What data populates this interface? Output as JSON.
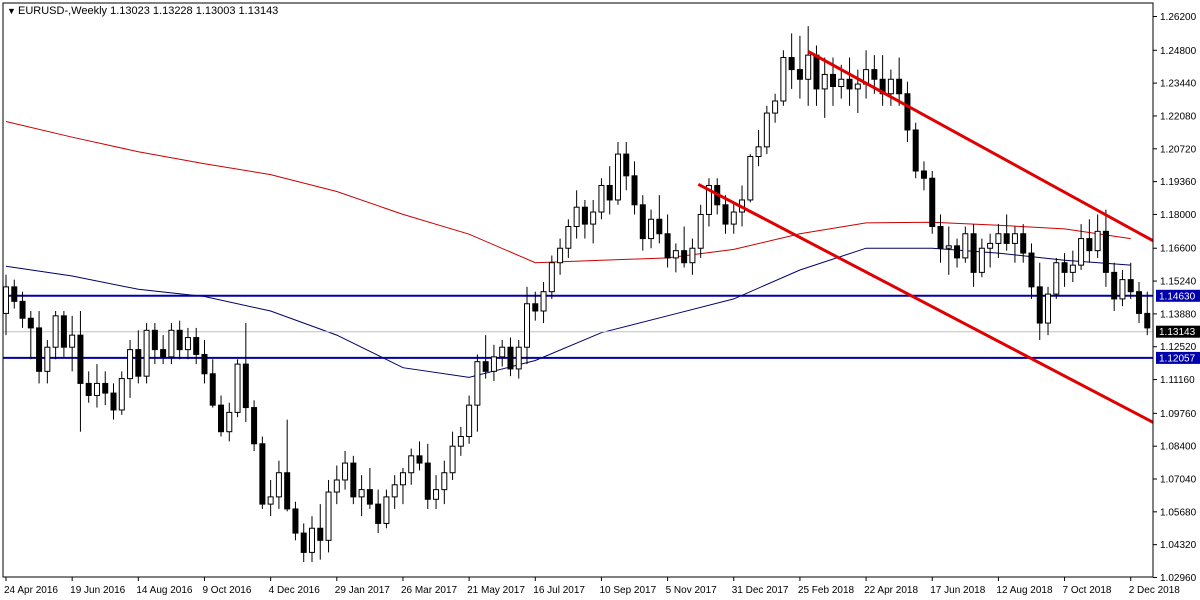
{
  "header": {
    "arrow": "▼",
    "text": "EURUSD-,Weekly  1.13023 1.13228 1.13003 1.13143"
  },
  "chart_data": {
    "type": "candlestick",
    "symbol": "EURUSD-",
    "timeframe": "Weekly",
    "last_bar": {
      "open": 1.13023,
      "high": 1.13228,
      "low": 1.13003,
      "close": 1.13143
    },
    "y_ticks": [
      "1.26200",
      "1.24800",
      "1.23440",
      "1.22080",
      "1.20720",
      "1.19360",
      "1.18000",
      "1.16600",
      "1.15240",
      "1.13880",
      "1.12520",
      "1.11160",
      "1.09760",
      "1.08400",
      "1.07040",
      "1.05680",
      "1.04320",
      "1.02960"
    ],
    "ylim": [
      1.0296,
      1.262
    ],
    "x_tick_labels": [
      "24 Apr 2016",
      "19 Jun 2016",
      "14 Aug 2016",
      "9 Oct 2016",
      "4 Dec 2016",
      "29 Jan 2017",
      "26 Mar 2017",
      "21 May 2017",
      "16 Jul 2017",
      "10 Sep 2017",
      "5 Nov 2017",
      "31 Dec 2017",
      "25 Feb 2018",
      "22 Apr 2018",
      "17 Jun 2018",
      "12 Aug 2018",
      "7 Oct 2018",
      "2 Dec 2018"
    ],
    "horizontal_levels": [
      {
        "label": "1.14630",
        "value": 1.1463,
        "color": "#0000aa"
      },
      {
        "label": "1.12057",
        "value": 1.12057,
        "color": "#0000aa"
      }
    ],
    "current_price": {
      "label": "1.13143",
      "value": 1.13143,
      "color": "#000000"
    },
    "trendlines": [
      {
        "color": "#e00000",
        "points": [
          [
            "4 Mar 2018",
            1.2475
          ],
          [
            "17 Feb 2019",
            1.1535
          ]
        ]
      },
      {
        "color": "#e00000",
        "points": [
          [
            "1 Dec 2017",
            1.1925
          ],
          [
            "17 Feb 2019",
            1.079
          ]
        ]
      }
    ],
    "moving_averages": [
      {
        "color": "#cc0000",
        "points": [
          [
            "24 Apr 2016",
            1.2185
          ],
          [
            "19 Jun 2016",
            1.212
          ],
          [
            "14 Aug 2016",
            1.206
          ],
          [
            "9 Oct 2016",
            1.201
          ],
          [
            "4 Dec 2016",
            1.1965
          ],
          [
            "29 Jan 2017",
            1.1895
          ],
          [
            "26 Mar 2017",
            1.18
          ],
          [
            "21 May 2017",
            1.1718
          ],
          [
            "16 Jul 2017",
            1.16
          ],
          [
            "10 Sep 2017",
            1.161
          ],
          [
            "5 Nov 2017",
            1.162
          ],
          [
            "31 Dec 2017",
            1.1655
          ],
          [
            "25 Feb 2018",
            1.172
          ],
          [
            "22 Apr 2018",
            1.1765
          ],
          [
            "17 Jun 2018",
            1.1768
          ],
          [
            "12 Aug 2018",
            1.1755
          ],
          [
            "7 Oct 2018",
            1.174
          ],
          [
            "2 Dec 2018",
            1.17
          ]
        ]
      },
      {
        "color": "#000066",
        "points": [
          [
            "24 Apr 2016",
            1.1585
          ],
          [
            "19 Jun 2016",
            1.1545
          ],
          [
            "14 Aug 2016",
            1.149
          ],
          [
            "9 Oct 2016",
            1.146
          ],
          [
            "4 Dec 2016",
            1.14
          ],
          [
            "29 Jan 2017",
            1.13
          ],
          [
            "26 Mar 2017",
            1.1165
          ],
          [
            "21 May 2017",
            1.1125
          ],
          [
            "16 Jul 2017",
            1.1195
          ],
          [
            "10 Sep 2017",
            1.131
          ],
          [
            "5 Nov 2017",
            1.138
          ],
          [
            "31 Dec 2017",
            1.145
          ],
          [
            "25 Feb 2018",
            1.157
          ],
          [
            "22 Apr 2018",
            1.166
          ],
          [
            "17 Jun 2018",
            1.166
          ],
          [
            "12 Aug 2018",
            1.164
          ],
          [
            "7 Oct 2018",
            1.161
          ],
          [
            "2 Dec 2018",
            1.159
          ]
        ]
      }
    ],
    "candles": [
      [
        1.139,
        1.155,
        1.13,
        1.15
      ],
      [
        1.15,
        1.153,
        1.141,
        1.144
      ],
      [
        1.144,
        1.148,
        1.133,
        1.137
      ],
      [
        1.137,
        1.14,
        1.12,
        1.133
      ],
      [
        1.133,
        1.14,
        1.11,
        1.115
      ],
      [
        1.115,
        1.128,
        1.11,
        1.125
      ],
      [
        1.125,
        1.14,
        1.12,
        1.138
      ],
      [
        1.138,
        1.14,
        1.121,
        1.125
      ],
      [
        1.125,
        1.138,
        1.115,
        1.13
      ],
      [
        1.13,
        1.14,
        1.09,
        1.11
      ],
      [
        1.11,
        1.115,
        1.102,
        1.105
      ],
      [
        1.105,
        1.118,
        1.1,
        1.11
      ],
      [
        1.11,
        1.115,
        1.101,
        1.106
      ],
      [
        1.106,
        1.11,
        1.095,
        1.099
      ],
      [
        1.099,
        1.115,
        1.097,
        1.112
      ],
      [
        1.112,
        1.128,
        1.104,
        1.124
      ],
      [
        1.124,
        1.132,
        1.11,
        1.113
      ],
      [
        1.113,
        1.135,
        1.11,
        1.132
      ],
      [
        1.132,
        1.135,
        1.118,
        1.124
      ],
      [
        1.124,
        1.13,
        1.118,
        1.121
      ],
      [
        1.121,
        1.135,
        1.118,
        1.132
      ],
      [
        1.132,
        1.136,
        1.12,
        1.124
      ],
      [
        1.124,
        1.133,
        1.12,
        1.129
      ],
      [
        1.129,
        1.133,
        1.118,
        1.122
      ],
      [
        1.122,
        1.128,
        1.11,
        1.114
      ],
      [
        1.114,
        1.12,
        1.1,
        1.101
      ],
      [
        1.101,
        1.105,
        1.088,
        1.09
      ],
      [
        1.09,
        1.102,
        1.086,
        1.098
      ],
      [
        1.098,
        1.12,
        1.096,
        1.118
      ],
      [
        1.118,
        1.135,
        1.094,
        1.1
      ],
      [
        1.1,
        1.103,
        1.082,
        1.085
      ],
      [
        1.085,
        1.088,
        1.058,
        1.06
      ],
      [
        1.06,
        1.07,
        1.055,
        1.063
      ],
      [
        1.063,
        1.078,
        1.058,
        1.073
      ],
      [
        1.073,
        1.095,
        1.057,
        1.058
      ],
      [
        1.058,
        1.061,
        1.045,
        1.048
      ],
      [
        1.048,
        1.052,
        1.036,
        1.04
      ],
      [
        1.04,
        1.055,
        1.036,
        1.05
      ],
      [
        1.05,
        1.06,
        1.037,
        1.045
      ],
      [
        1.045,
        1.07,
        1.04,
        1.065
      ],
      [
        1.065,
        1.076,
        1.06,
        1.07
      ],
      [
        1.07,
        1.082,
        1.066,
        1.077
      ],
      [
        1.077,
        1.08,
        1.06,
        1.063
      ],
      [
        1.063,
        1.072,
        1.055,
        1.066
      ],
      [
        1.066,
        1.075,
        1.058,
        1.06
      ],
      [
        1.06,
        1.066,
        1.048,
        1.052
      ],
      [
        1.052,
        1.066,
        1.05,
        1.063
      ],
      [
        1.063,
        1.072,
        1.058,
        1.068
      ],
      [
        1.068,
        1.075,
        1.06,
        1.073
      ],
      [
        1.073,
        1.083,
        1.068,
        1.08
      ],
      [
        1.08,
        1.086,
        1.074,
        1.077
      ],
      [
        1.077,
        1.085,
        1.058,
        1.062
      ],
      [
        1.062,
        1.072,
        1.058,
        1.066
      ],
      [
        1.066,
        1.078,
        1.06,
        1.073
      ],
      [
        1.073,
        1.09,
        1.07,
        1.084
      ],
      [
        1.084,
        1.092,
        1.08,
        1.088
      ],
      [
        1.088,
        1.105,
        1.085,
        1.101
      ],
      [
        1.101,
        1.122,
        1.09,
        1.119
      ],
      [
        1.119,
        1.13,
        1.112,
        1.115
      ],
      [
        1.115,
        1.126,
        1.111,
        1.121
      ],
      [
        1.121,
        1.128,
        1.117,
        1.125
      ],
      [
        1.125,
        1.129,
        1.113,
        1.116
      ],
      [
        1.116,
        1.128,
        1.112,
        1.125
      ],
      [
        1.125,
        1.15,
        1.118,
        1.143
      ],
      [
        1.143,
        1.148,
        1.136,
        1.14
      ],
      [
        1.14,
        1.152,
        1.135,
        1.148
      ],
      [
        1.148,
        1.163,
        1.145,
        1.16
      ],
      [
        1.16,
        1.17,
        1.155,
        1.166
      ],
      [
        1.166,
        1.178,
        1.162,
        1.175
      ],
      [
        1.175,
        1.19,
        1.17,
        1.183
      ],
      [
        1.183,
        1.186,
        1.17,
        1.176
      ],
      [
        1.176,
        1.186,
        1.168,
        1.181
      ],
      [
        1.181,
        1.195,
        1.178,
        1.192
      ],
      [
        1.192,
        1.2,
        1.18,
        1.186
      ],
      [
        1.186,
        1.21,
        1.184,
        1.205
      ],
      [
        1.205,
        1.21,
        1.19,
        1.196
      ],
      [
        1.196,
        1.202,
        1.18,
        1.184
      ],
      [
        1.184,
        1.188,
        1.165,
        1.17
      ],
      [
        1.17,
        1.182,
        1.166,
        1.178
      ],
      [
        1.178,
        1.188,
        1.168,
        1.172
      ],
      [
        1.172,
        1.18,
        1.158,
        1.162
      ],
      [
        1.162,
        1.168,
        1.156,
        1.165
      ],
      [
        1.165,
        1.175,
        1.158,
        1.16
      ],
      [
        1.16,
        1.17,
        1.155,
        1.166
      ],
      [
        1.166,
        1.184,
        1.162,
        1.18
      ],
      [
        1.18,
        1.195,
        1.175,
        1.192
      ],
      [
        1.192,
        1.195,
        1.18,
        1.184
      ],
      [
        1.184,
        1.188,
        1.172,
        1.176
      ],
      [
        1.176,
        1.185,
        1.172,
        1.181
      ],
      [
        1.181,
        1.192,
        1.175,
        1.186
      ],
      [
        1.186,
        1.205,
        1.185,
        1.204
      ],
      [
        1.204,
        1.215,
        1.2,
        1.208
      ],
      [
        1.208,
        1.225,
        1.205,
        1.222
      ],
      [
        1.222,
        1.23,
        1.218,
        1.227
      ],
      [
        1.227,
        1.248,
        1.225,
        1.245
      ],
      [
        1.245,
        1.255,
        1.232,
        1.24
      ],
      [
        1.24,
        1.254,
        1.228,
        1.236
      ],
      [
        1.236,
        1.258,
        1.225,
        1.246
      ],
      [
        1.246,
        1.25,
        1.225,
        1.232
      ],
      [
        1.232,
        1.245,
        1.22,
        1.238
      ],
      [
        1.238,
        1.245,
        1.225,
        1.233
      ],
      [
        1.233,
        1.242,
        1.228,
        1.236
      ],
      [
        1.236,
        1.245,
        1.225,
        1.232
      ],
      [
        1.232,
        1.24,
        1.222,
        1.234
      ],
      [
        1.234,
        1.248,
        1.228,
        1.24
      ],
      [
        1.24,
        1.246,
        1.23,
        1.236
      ],
      [
        1.236,
        1.246,
        1.225,
        1.23
      ],
      [
        1.23,
        1.24,
        1.225,
        1.236
      ],
      [
        1.236,
        1.245,
        1.225,
        1.23
      ],
      [
        1.23,
        1.235,
        1.21,
        1.215
      ],
      [
        1.215,
        1.218,
        1.195,
        1.198
      ],
      [
        1.198,
        1.202,
        1.19,
        1.195
      ],
      [
        1.195,
        1.198,
        1.172,
        1.175
      ],
      [
        1.175,
        1.18,
        1.16,
        1.166
      ],
      [
        1.166,
        1.175,
        1.155,
        1.167
      ],
      [
        1.167,
        1.17,
        1.158,
        1.162
      ],
      [
        1.162,
        1.175,
        1.16,
        1.172
      ],
      [
        1.172,
        1.176,
        1.15,
        1.156
      ],
      [
        1.156,
        1.17,
        1.154,
        1.166
      ],
      [
        1.166,
        1.172,
        1.158,
        1.168
      ],
      [
        1.168,
        1.176,
        1.162,
        1.172
      ],
      [
        1.172,
        1.18,
        1.165,
        1.168
      ],
      [
        1.168,
        1.175,
        1.16,
        1.172
      ],
      [
        1.172,
        1.176,
        1.16,
        1.164
      ],
      [
        1.164,
        1.168,
        1.145,
        1.15
      ],
      [
        1.15,
        1.16,
        1.128,
        1.135
      ],
      [
        1.135,
        1.15,
        1.13,
        1.147
      ],
      [
        1.147,
        1.162,
        1.145,
        1.16
      ],
      [
        1.16,
        1.164,
        1.15,
        1.156
      ],
      [
        1.156,
        1.165,
        1.152,
        1.159
      ],
      [
        1.159,
        1.176,
        1.157,
        1.17
      ],
      [
        1.17,
        1.178,
        1.16,
        1.165
      ],
      [
        1.165,
        1.18,
        1.162,
        1.173
      ],
      [
        1.173,
        1.182,
        1.15,
        1.156
      ],
      [
        1.156,
        1.16,
        1.14,
        1.145
      ],
      [
        1.145,
        1.157,
        1.142,
        1.153
      ],
      [
        1.153,
        1.16,
        1.145,
        1.148
      ],
      [
        1.148,
        1.152,
        1.135,
        1.139
      ],
      [
        1.139,
        1.148,
        1.13,
        1.133
      ],
      [
        1.133,
        1.14,
        1.128,
        1.136
      ],
      [
        1.136,
        1.15,
        1.133,
        1.142
      ],
      [
        1.142,
        1.146,
        1.128,
        1.131
      ],
      [
        1.131,
        1.143,
        1.122,
        1.14
      ],
      [
        1.14,
        1.146,
        1.13,
        1.133
      ],
      [
        1.133,
        1.144,
        1.128,
        1.142
      ],
      [
        1.142,
        1.146,
        1.126,
        1.13
      ],
      [
        1.13023,
        1.13228,
        1.13003,
        1.13143
      ]
    ]
  }
}
